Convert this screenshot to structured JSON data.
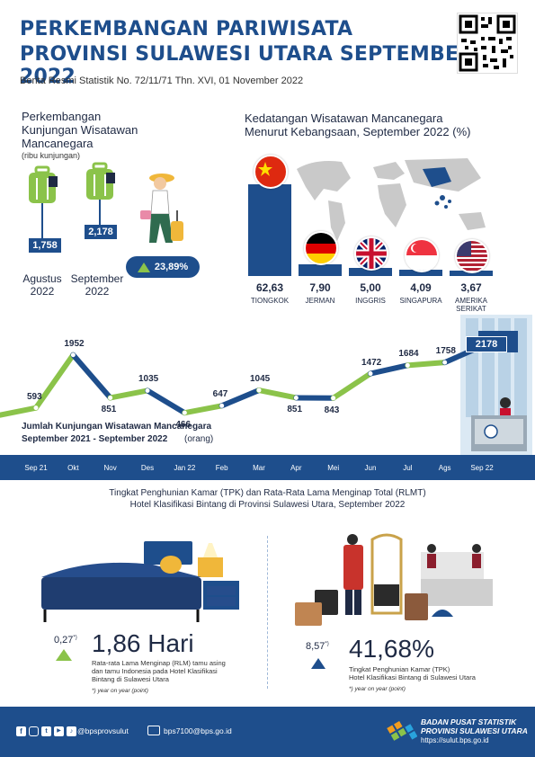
{
  "header": {
    "title_line1": "PERKEMBANGAN PARIWISATA",
    "title_line2": "PROVINSI SULAWESI UTARA SEPTEMBER 2022",
    "subtitle": "Berita Resmi Statistik No. 72/11/71 Thn. XVI, 01 November 2022"
  },
  "visits": {
    "title_l1": "Perkembangan",
    "title_l2": "Kunjungan Wisatawan",
    "title_l3": "Mancanegara",
    "unit": "(ribu kunjungan)",
    "aug_value": "1,758",
    "aug_label_l1": "Agustus",
    "aug_label_l2": "2022",
    "sep_value": "2,178",
    "sep_label_l1": "September",
    "sep_label_l2": "2022",
    "growth": "23,89%"
  },
  "nationality": {
    "title_l1": "Kedatangan Wisatawan Mancanegara",
    "title_l2": "Menurut Kebangsaan, September 2022 (%)",
    "items": [
      {
        "value": "62,63",
        "name": "TIONGKOK",
        "name2": ""
      },
      {
        "value": "7,90",
        "name": "JERMAN",
        "name2": ""
      },
      {
        "value": "5,00",
        "name": "INGGRIS",
        "name2": ""
      },
      {
        "value": "4,09",
        "name": "SINGAPURA",
        "name2": ""
      },
      {
        "value": "3,67",
        "name": "AMERIKA",
        "name2": "SERIKAT"
      }
    ]
  },
  "trend": {
    "title_l1": "Jumlah Kunjungan Wisatawan Mancanegara",
    "title_l2": "September 2021 - September 2022",
    "unit": "(orang)",
    "months": [
      "Sep 21",
      "Okt",
      "Nov",
      "Des",
      "Jan 22",
      "Feb",
      "Mar",
      "Apr",
      "Mei",
      "Jun",
      "Jul",
      "Ags",
      "Sep 22"
    ],
    "values": [
      "593",
      "1952",
      "851",
      "1035",
      "466",
      "647",
      "1045",
      "851",
      "843",
      "1472",
      "1684",
      "1758",
      "2178"
    ]
  },
  "tpk": {
    "title_l1": "Tingkat Penghunian Kamar (TPK) dan Rata-Rata Lama Menginap Total (RLMT)",
    "title_l2": "Hotel Klasifikasi Bintang di Provinsi Sulawesi Utara, September 2022",
    "rlm_change": "0,27",
    "rlm_sup": "*)",
    "rlm_value": "1,86 Hari",
    "rlm_desc_l1": "Rata-rata Lama Menginap (RLM) tamu asing",
    "rlm_desc_l2": "dan tamu Indonesia pada Hotel Klasifikasi",
    "rlm_desc_l3": "Bintang di Sulawesi Utara",
    "rlm_note": "*) year on year (point)",
    "tpk_change": "8,57",
    "tpk_sup": "*)",
    "tpk_value": "41,68%",
    "tpk_desc_l1": "Tingkat Penghunian Kamar (TPK)",
    "tpk_desc_l2": "Hotel Klasifikasi Bintang di Sulawesi Utara",
    "tpk_note": "*) year on year (point)"
  },
  "footer": {
    "social_handle": "@bpsprovsulut",
    "email": "bps7100@bps.go.id",
    "org_l1": "BADAN PUSAT STATISTIK",
    "org_l2": "PROVINSI SULAWESI UTARA",
    "url": "https://sulut.bps.go.id"
  },
  "colors": {
    "primary": "#1e4e8c",
    "accent_green": "#8bc34a",
    "red_flag": "#de2910"
  }
}
